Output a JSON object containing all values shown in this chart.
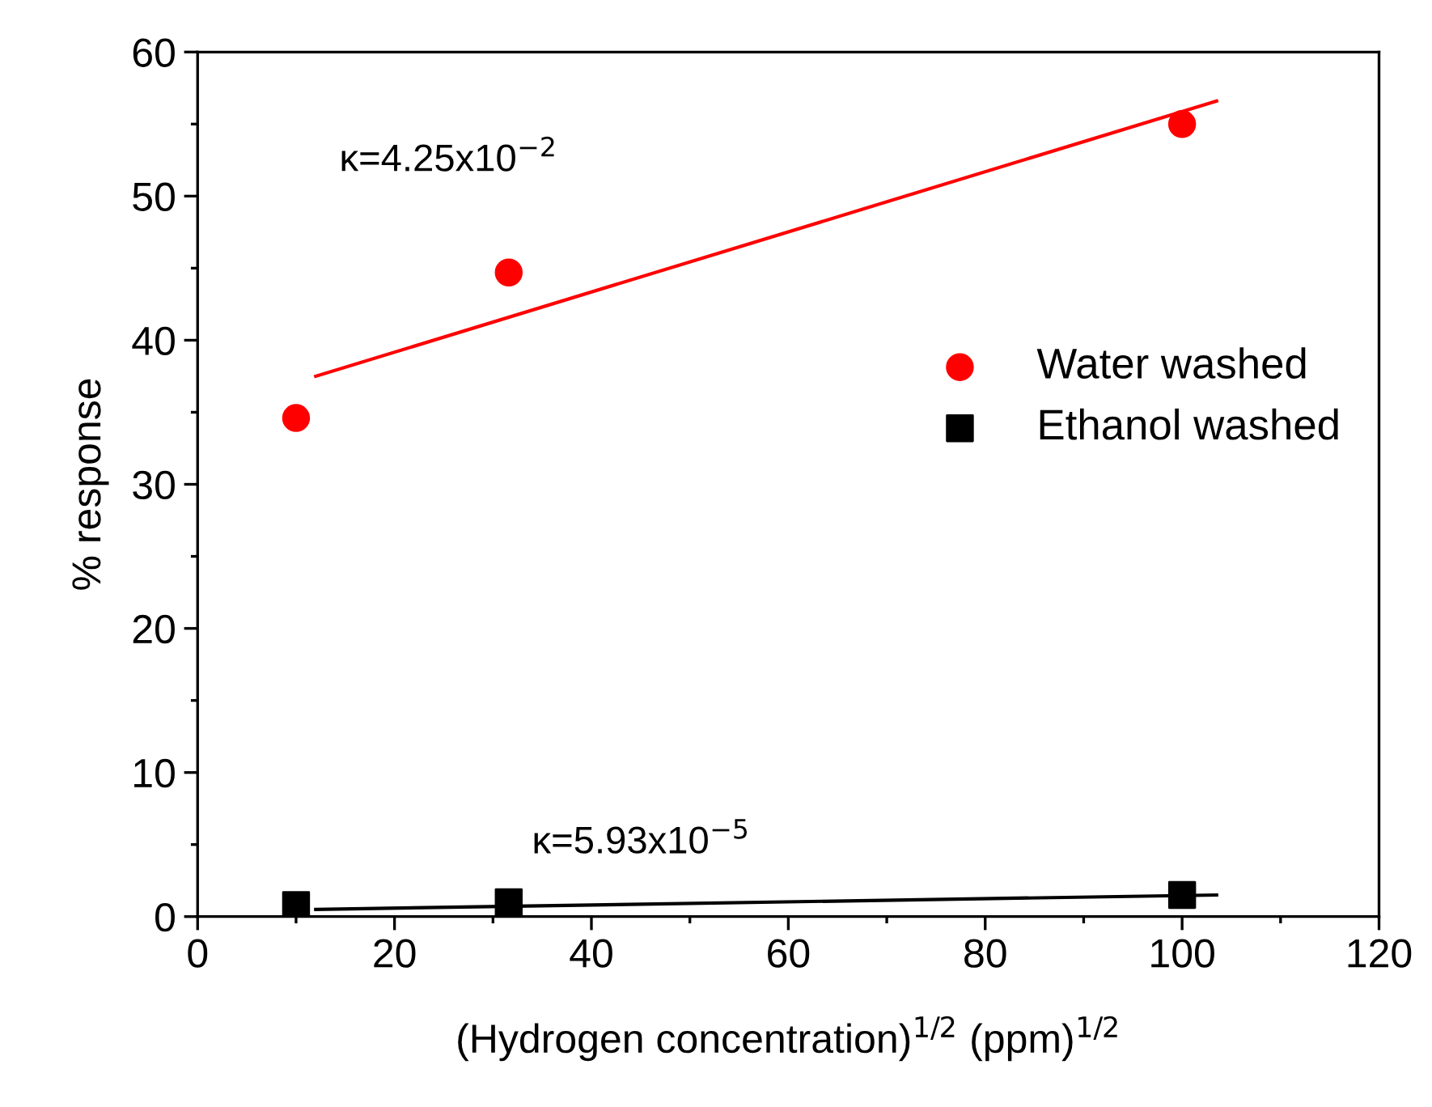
{
  "chart_data": {
    "type": "scatter",
    "xlabel": "(Hydrogen concentration)$^{1/2}$ (ppm)$^{1/2}$",
    "ylabel": "% response",
    "xlim": [
      0,
      120
    ],
    "xticks": [
      0,
      20,
      40,
      60,
      80,
      100,
      120
    ],
    "ylim": [
      0,
      60
    ],
    "yticks": [
      0,
      10,
      20,
      30,
      40,
      50,
      60
    ],
    "grid": false,
    "legend": "right",
    "series": [
      {
        "name": "Water washed",
        "marker": "circle",
        "color": "#ff0000",
        "x": [
          10,
          31.6,
          100
        ],
        "values": [
          34.6,
          44.7,
          55.0
        ]
      },
      {
        "name": "Ethanol washed",
        "marker": "square",
        "color": "#000000",
        "x": [
          10,
          31.6,
          100
        ],
        "values": [
          0.8,
          1.0,
          1.5
        ]
      },
      {
        "type": "line",
        "marker": "none",
        "color": "#ff0000",
        "x": [
          12,
          103.5
        ],
        "values": [
          37.5,
          56.6
        ]
      },
      {
        "type": "line",
        "marker": "none",
        "color": "#000000",
        "x": [
          12,
          103.5
        ],
        "values": [
          0.5,
          1.5
        ]
      }
    ],
    "annotations": [
      "κ=4.25x10$^{−2}$",
      "κ=5.93x10$^{−5}$"
    ]
  }
}
